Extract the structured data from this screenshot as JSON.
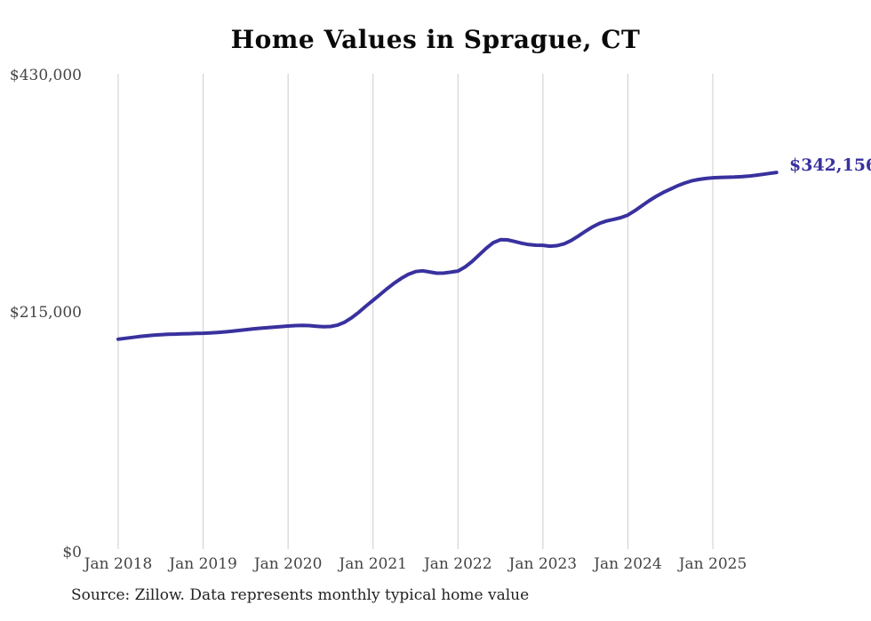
{
  "chart": {
    "title": "Home Values in Sprague, CT",
    "end_label": "$342,156",
    "source": "Source: Zillow. Data represents monthly typical home value",
    "colors": {
      "line": "#39319e",
      "grid": "#cccccc",
      "axis_text": "#444444",
      "title_text": "#0a0a0a",
      "source_text": "#222222"
    }
  },
  "chart_data": {
    "type": "line",
    "title": "Home Values in Sprague, CT",
    "series_name": "Monthly typical home value (ZHVI)",
    "interval": "monthly",
    "x_start": "Jan 2018",
    "x_end": "Oct 2025",
    "x_tick_labels": [
      "Jan 2018",
      "Jan 2019",
      "Jan 2020",
      "Jan 2021",
      "Jan 2022",
      "Jan 2023",
      "Jan 2024",
      "Jan 2025"
    ],
    "y_tick_labels": [
      "$430,000",
      "$215,000",
      "$0"
    ],
    "ylim": [
      0,
      430000
    ],
    "grid": "vertical-only",
    "legend": "none",
    "final_value": 342156,
    "values": [
      191000,
      191800,
      192600,
      193400,
      194100,
      194700,
      195100,
      195400,
      195600,
      195800,
      196000,
      196200,
      196400,
      196700,
      197100,
      197600,
      198200,
      198900,
      199600,
      200300,
      200900,
      201400,
      201900,
      202400,
      202900,
      203300,
      203500,
      203300,
      202800,
      202300,
      202500,
      203800,
      206500,
      210500,
      215500,
      221000,
      226200,
      231500,
      236800,
      241800,
      246200,
      249800,
      252300,
      253000,
      252000,
      250800,
      250900,
      251800,
      252800,
      256500,
      261500,
      267500,
      273500,
      278500,
      281200,
      281000,
      279600,
      278000,
      276800,
      276200,
      276100,
      275300,
      275800,
      277500,
      280500,
      284500,
      288800,
      292800,
      296000,
      298200,
      299600,
      301200,
      303500,
      307500,
      312000,
      316500,
      320500,
      324000,
      327000,
      330000,
      332500,
      334500,
      335800,
      336700,
      337300,
      337600,
      337800,
      338000,
      338300,
      338800,
      339500,
      340400,
      341300,
      342156
    ]
  }
}
